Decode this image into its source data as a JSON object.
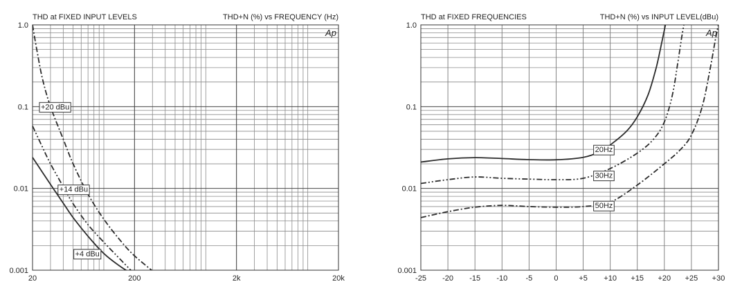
{
  "chart_data": [
    {
      "type": "line",
      "title": "THD at FIXED INPUT LEVELS",
      "subtitle": "THD+N (%) vs FREQUENCY (Hz)",
      "x_scale": "log",
      "y_scale": "log",
      "xlim": [
        20,
        20000
      ],
      "ylim": [
        0.001,
        1.0
      ],
      "xticks": [
        20,
        200,
        2000,
        20000
      ],
      "xtick_labels": [
        "20",
        "200",
        "2k",
        "20k"
      ],
      "yticks": [
        0.001,
        0.01,
        0.1,
        1.0
      ],
      "ytick_labels": [
        "0.001",
        "0.01",
        "0.1",
        "1.0"
      ],
      "grid": true,
      "legend": "none",
      "watermark": "Ap",
      "series": [
        {
          "name": "+20 dBu",
          "style": "dash-dot",
          "label_at": [
            23,
            0.1
          ],
          "points": [
            [
              20,
              1.0
            ],
            [
              22,
              0.5
            ],
            [
              25,
              0.22
            ],
            [
              30,
              0.1
            ],
            [
              40,
              0.04
            ],
            [
              50,
              0.02
            ],
            [
              70,
              0.0085
            ],
            [
              100,
              0.0042
            ],
            [
              150,
              0.0022
            ],
            [
              200,
              0.0015
            ],
            [
              300,
              0.00098
            ]
          ]
        },
        {
          "name": "+14 dBu",
          "style": "dash-dot-dot",
          "label_at": [
            35,
            0.0098
          ],
          "points": [
            [
              20,
              0.058
            ],
            [
              25,
              0.032
            ],
            [
              30,
              0.02
            ],
            [
              40,
              0.0105
            ],
            [
              50,
              0.0065
            ],
            [
              70,
              0.0036
            ],
            [
              100,
              0.0022
            ],
            [
              150,
              0.0013
            ],
            [
              200,
              0.0009
            ]
          ]
        },
        {
          "name": "+4 dBu",
          "style": "solid",
          "label_at": [
            50,
            0.0016
          ],
          "points": [
            [
              20,
              0.024
            ],
            [
              30,
              0.0112
            ],
            [
              40,
              0.0066
            ],
            [
              50,
              0.0044
            ],
            [
              70,
              0.0026
            ],
            [
              100,
              0.0016
            ],
            [
              150,
              0.00108
            ],
            [
              200,
              0.00088
            ]
          ]
        }
      ]
    },
    {
      "type": "line",
      "title": "THD at FIXED FREQUENCIES",
      "subtitle": "THD+N (%) vs INPUT LEVEL(dBu)",
      "x_scale": "linear",
      "y_scale": "log",
      "xlim": [
        -25,
        30
      ],
      "ylim": [
        0.001,
        1.0
      ],
      "xticks": [
        -25,
        -20,
        -15,
        -10,
        -5,
        0,
        5,
        10,
        15,
        20,
        25,
        30
      ],
      "xtick_labels": [
        "-25",
        "-20",
        "-15",
        "-10",
        "-5",
        "0",
        "+5",
        "+10",
        "+15",
        "+20",
        "+25",
        "+30"
      ],
      "yticks": [
        0.001,
        0.01,
        0.1,
        1.0
      ],
      "ytick_labels": [
        "0.001",
        "0.01",
        "0.1",
        "1.0"
      ],
      "grid": true,
      "legend": "none",
      "watermark": "Ap",
      "series": [
        {
          "name": "20Hz",
          "style": "solid",
          "label_at": [
            6.8,
            0.03
          ],
          "points": [
            [
              -25,
              0.021
            ],
            [
              -20,
              0.023
            ],
            [
              -15,
              0.0238
            ],
            [
              -10,
              0.0232
            ],
            [
              -5,
              0.0225
            ],
            [
              0,
              0.0224
            ],
            [
              5,
              0.024
            ],
            [
              8,
              0.028
            ],
            [
              10,
              0.034
            ],
            [
              13,
              0.05
            ],
            [
              15,
              0.075
            ],
            [
              17,
              0.14
            ],
            [
              18.5,
              0.3
            ],
            [
              19.5,
              0.6
            ],
            [
              20.2,
              1.0
            ]
          ]
        },
        {
          "name": "30Hz",
          "style": "dash-dot-dot",
          "label_at": [
            6.8,
            0.0145
          ],
          "points": [
            [
              -25,
              0.0115
            ],
            [
              -20,
              0.0128
            ],
            [
              -15,
              0.0138
            ],
            [
              -10,
              0.0133
            ],
            [
              -5,
              0.013
            ],
            [
              0,
              0.0128
            ],
            [
              5,
              0.0133
            ],
            [
              10,
              0.0175
            ],
            [
              15,
              0.027
            ],
            [
              18,
              0.04
            ],
            [
              20,
              0.065
            ],
            [
              21.5,
              0.14
            ],
            [
              22.5,
              0.35
            ],
            [
              23.2,
              0.7
            ],
            [
              23.6,
              1.0
            ]
          ]
        },
        {
          "name": "50Hz",
          "style": "dash-dot",
          "label_at": [
            6.8,
            0.0062
          ],
          "points": [
            [
              -25,
              0.0044
            ],
            [
              -20,
              0.0052
            ],
            [
              -15,
              0.0059
            ],
            [
              -10,
              0.0062
            ],
            [
              -5,
              0.006
            ],
            [
              0,
              0.0059
            ],
            [
              5,
              0.006
            ],
            [
              10,
              0.0068
            ],
            [
              15,
              0.011
            ],
            [
              20,
              0.02
            ],
            [
              23,
              0.03
            ],
            [
              25,
              0.045
            ],
            [
              27,
              0.1
            ],
            [
              28.5,
              0.3
            ],
            [
              29.5,
              0.7
            ],
            [
              30,
              1.0
            ]
          ]
        }
      ]
    }
  ]
}
